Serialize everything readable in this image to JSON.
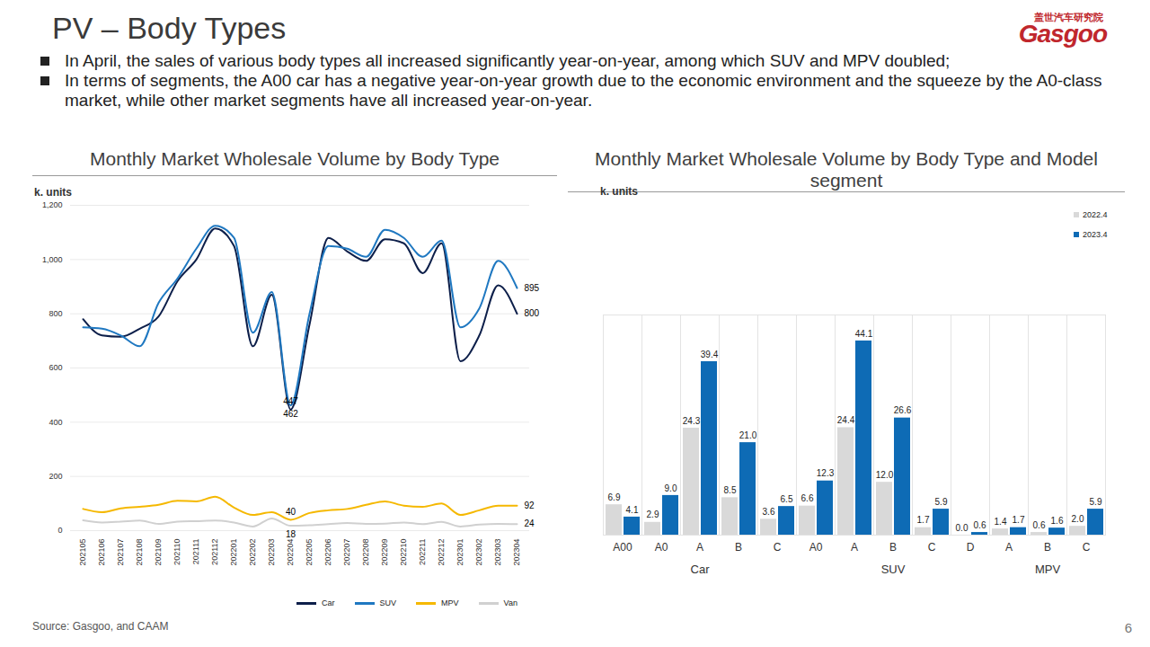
{
  "title": "PV – Body Types",
  "logo": [
    "盖世汽车研究院",
    "Gasgoo"
  ],
  "bullets": [
    "In April, the sales of various body types all increased significantly year-on-year, among which SUV and MPV doubled;",
    "In terms of segments, the A00 car has a negative year-on-year growth due to the economic environment and the squeeze by the A0-class market, while other market segments have all increased year-on-year."
  ],
  "source": "Source: Gasgoo, and CAAM",
  "page": 6,
  "chart_data": [
    {
      "type": "line",
      "title": "Monthly Market Wholesale Volume by Body Type",
      "ylabel": "k. units",
      "x": [
        "202105",
        "202106",
        "202107",
        "202108",
        "202109",
        "202110",
        "202111",
        "202112",
        "202201",
        "202202",
        "202203",
        "202204",
        "202205",
        "202206",
        "202207",
        "202208",
        "202209",
        "202210",
        "202211",
        "202212",
        "202301",
        "202302",
        "202303",
        "202304"
      ],
      "series": [
        {
          "name": "Car",
          "color": "#0d1f4a",
          "values": [
            780,
            720,
            715,
            745,
            790,
            920,
            1000,
            1115,
            1050,
            680,
            870,
            447,
            760,
            1080,
            1030,
            995,
            1075,
            1060,
            950,
            1060,
            625,
            720,
            905,
            800
          ]
        },
        {
          "name": "SUV",
          "color": "#1f78c1",
          "values": [
            750,
            745,
            720,
            680,
            840,
            930,
            1040,
            1125,
            1080,
            730,
            880,
            462,
            800,
            1050,
            1040,
            1010,
            1110,
            1080,
            1010,
            1070,
            750,
            820,
            995,
            895
          ]
        },
        {
          "name": "MPV",
          "color": "#f5b800",
          "values": [
            80,
            68,
            82,
            88,
            95,
            110,
            108,
            125,
            85,
            58,
            68,
            40,
            65,
            75,
            80,
            95,
            108,
            92,
            88,
            100,
            58,
            75,
            92,
            92
          ]
        },
        {
          "name": "Van",
          "color": "#d0d0d0",
          "values": [
            38,
            30,
            33,
            37,
            25,
            33,
            35,
            37,
            30,
            15,
            45,
            18,
            20,
            24,
            28,
            25,
            26,
            30,
            24,
            32,
            15,
            22,
            25,
            24
          ]
        }
      ],
      "annotations": [
        {
          "series": "Car",
          "x": "202204",
          "value": 447
        },
        {
          "series": "SUV",
          "x": "202204",
          "value": 462
        },
        {
          "series": "MPV",
          "x": "202204",
          "value": 40
        },
        {
          "series": "Van",
          "x": "202204",
          "value": 18
        },
        {
          "series": "SUV",
          "x": "202304",
          "value": 895
        },
        {
          "series": "Car",
          "x": "202304",
          "value": 800
        },
        {
          "series": "MPV",
          "x": "202304",
          "value": 92
        },
        {
          "series": "Van",
          "x": "202304",
          "value": 24
        }
      ],
      "ylim": [
        0,
        1200
      ],
      "yticks": [
        0,
        200,
        400,
        600,
        800,
        {
          "value": 1000,
          "label": "1,000"
        },
        {
          "value": 1200,
          "label": "1,200"
        }
      ],
      "grid": true,
      "legend": "bottom"
    },
    {
      "type": "bar",
      "title": "Monthly Market Wholesale Volume by Body Type and Model segment",
      "ylabel": "k. units",
      "categories": [
        "A00",
        "A0",
        "A",
        "B",
        "C",
        "A0",
        "A",
        "B",
        "C",
        "D",
        "A",
        "B",
        "C"
      ],
      "groups": [
        "Car",
        "Car",
        "Car",
        "Car",
        "Car",
        "SUV",
        "SUV",
        "SUV",
        "SUV",
        "SUV",
        "MPV",
        "MPV",
        "MPV"
      ],
      "series": [
        {
          "name": "2022.4",
          "color": "#d9d9d9",
          "values": [
            6.9,
            2.9,
            24.3,
            8.5,
            3.6,
            6.6,
            24.4,
            12.0,
            1.7,
            0.0,
            1.4,
            0.6,
            2.0
          ],
          "value_labels": [
            "6.9",
            "2.9",
            "24.3",
            "8.5",
            "3.6",
            "6.6",
            "24.4",
            "12.0",
            "1.7",
            "0.0",
            "1.4",
            "0.6",
            "2.0"
          ]
        },
        {
          "name": "2023.4",
          "color": "#0e6bb5",
          "values": [
            4.1,
            9.0,
            39.4,
            21.0,
            6.5,
            12.3,
            44.1,
            26.6,
            5.9,
            0.6,
            1.7,
            1.6,
            5.9
          ],
          "value_labels": [
            "4.1",
            "9.0",
            "39.4",
            "21.0",
            "6.5",
            "12.3",
            "44.1",
            "26.6",
            "5.9",
            "0.6",
            "1.7",
            "1.6",
            "5.9"
          ]
        }
      ],
      "ylim": [
        0,
        50
      ],
      "tick_labels": "x",
      "data_labels": true,
      "legend": "top-right"
    }
  ]
}
